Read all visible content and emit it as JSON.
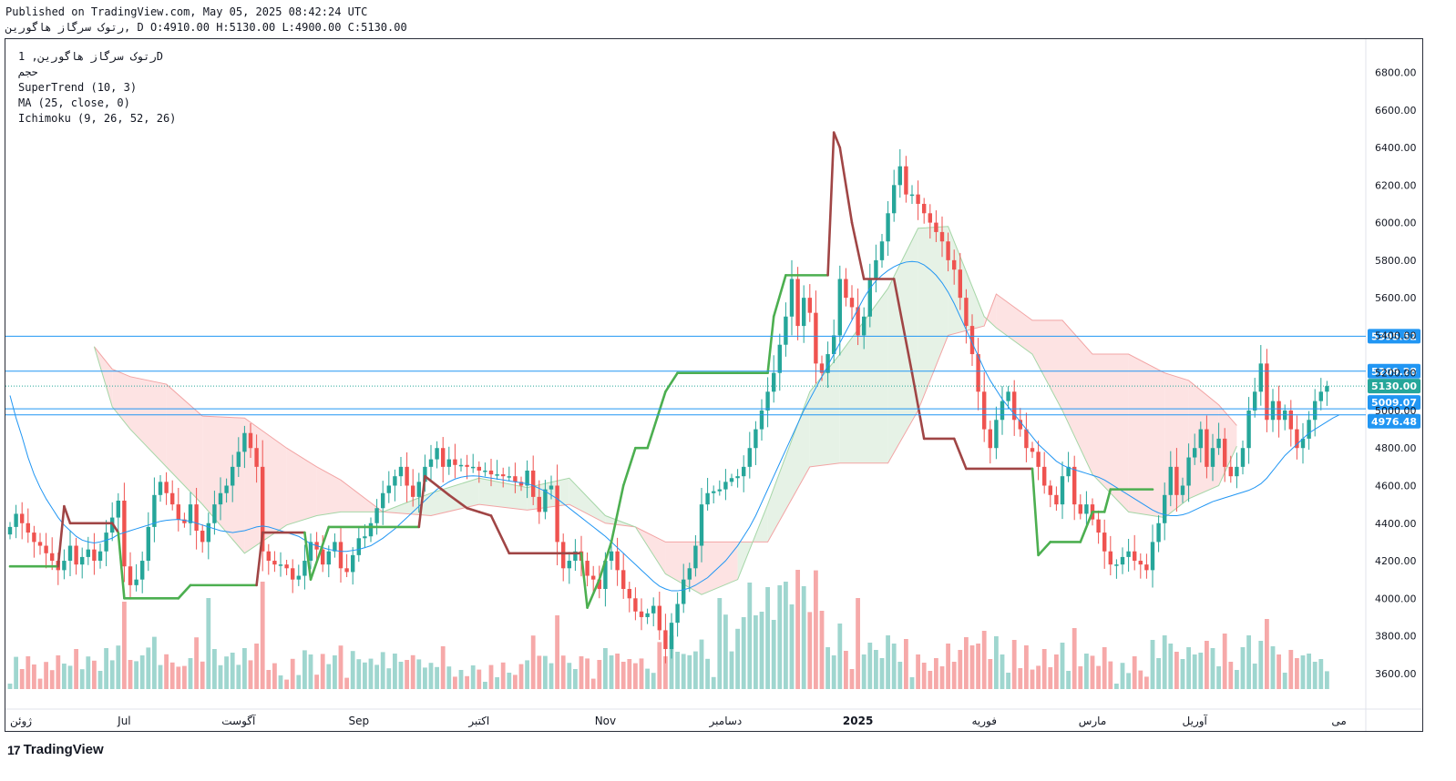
{
  "header": {
    "published": "Published on TradingView.com, May 05, 2025 08:42:24 UTC",
    "ohlc": "رتوک سرگاز هاگورین, D O:4910.00 H:5130.00 L:4900.00 C:5130.00"
  },
  "legend": {
    "symbol": "رتوک سرگاز هاگورین, 1D",
    "volume": "حجم",
    "supertrend": "SuperTrend (10, 3)",
    "ma": "MA (25, close, 0)",
    "ichimoku": "Ichimoku (9, 26, 52, 26)"
  },
  "footer": {
    "brand": "TradingView",
    "logo_glyph": "17"
  },
  "colors": {
    "up": "#26a69a",
    "down": "#ef5350",
    "vol_up": "#9fd6cf",
    "vol_down": "#f6a9a9",
    "ma": "#2196f3",
    "st_up": "#4caf50",
    "st_down": "#a04545",
    "cloud_bull": "#e6f2e6",
    "cloud_bear": "#fde3e3",
    "hline": "#2196f3"
  },
  "chart_data": {
    "type": "candlestick",
    "title": "رتوک سرگاز هاگورین, 1D",
    "ylim": [
      3420,
      6880
    ],
    "y_ticks": [
      3600,
      3800,
      4000,
      4200,
      4400,
      4600,
      4800,
      5000,
      5200,
      5400,
      5600,
      5800,
      6000,
      6200,
      6400,
      6600,
      6800
    ],
    "y_tick_labels": [
      "3600.00",
      "3800.00",
      "4000.00",
      "4200.00",
      "4400.00",
      "4600.00",
      "4800.00",
      "5000.00",
      "5200.00",
      "5400.00",
      "5600.00",
      "5800.00",
      "6000.00",
      "6200.00",
      "6400.00",
      "6600.00",
      "6800.00"
    ],
    "x_labels": [
      {
        "label": "ژوئن",
        "bar": 0
      },
      {
        "label": "Jul",
        "bar": 19
      },
      {
        "label": "آگوست",
        "bar": 38
      },
      {
        "label": "Sep",
        "bar": 58
      },
      {
        "label": "اکتبر",
        "bar": 78
      },
      {
        "label": "Nov",
        "bar": 99
      },
      {
        "label": "دسامبر",
        "bar": 119
      },
      {
        "label": "2025",
        "bar": 141
      },
      {
        "label": "فوریه",
        "bar": 162
      },
      {
        "label": "مارس",
        "bar": 180
      },
      {
        "label": "آوریل",
        "bar": 197
      },
      {
        "label": "می",
        "bar": 221
      }
    ],
    "price_lines": [
      {
        "value": 5395.52,
        "label": "5395.52"
      },
      {
        "value": 5209.28,
        "label": "5209.28"
      },
      {
        "value": 5009.07,
        "label": "5009.07"
      },
      {
        "value": 4976.48,
        "label": "4976.48"
      }
    ],
    "last_price": {
      "value": 5130.0,
      "label": "5130.00"
    },
    "bars_total": 225,
    "close": [
      4380,
      4450,
      4400,
      4350,
      4300,
      4280,
      4240,
      4200,
      4150,
      4200,
      4280,
      4180,
      4220,
      4260,
      4200,
      4250,
      4350,
      4430,
      4520,
      4170,
      4070,
      4100,
      4200,
      4380,
      4550,
      4620,
      4560,
      4500,
      4420,
      4400,
      4500,
      4360,
      4300,
      4400,
      4500,
      4560,
      4600,
      4700,
      4780,
      4880,
      4800,
      4700,
      4250,
      4200,
      4180,
      4180,
      4160,
      4100,
      4120,
      4200,
      4300,
      4260,
      4180,
      4250,
      4300,
      4160,
      4140,
      4230,
      4320,
      4330,
      4400,
      4480,
      4560,
      4600,
      4650,
      4700,
      4600,
      4540,
      4620,
      4700,
      4740,
      4800,
      4700,
      4740,
      4710,
      4710,
      4700,
      4700,
      4680,
      4680,
      4660,
      4660,
      4650,
      4650,
      4620,
      4600,
      4680,
      4540,
      4460,
      4580,
      4600,
      4300,
      4160,
      4200,
      4250,
      4200,
      4120,
      4100,
      4050,
      4200,
      4250,
      4150,
      4050,
      4000,
      3930,
      3900,
      3920,
      3960,
      3830,
      3730,
      3870,
      3970,
      4100,
      4160,
      4280,
      4500,
      4560,
      4570,
      4580,
      4620,
      4640,
      4650,
      4700,
      4800,
      4900,
      5000,
      5100,
      5200,
      5350,
      5500,
      5700,
      5450,
      5600,
      5520,
      5250,
      5200,
      5300,
      5400,
      5700,
      5600,
      5550,
      5400,
      5500,
      5700,
      5800,
      5900,
      6050,
      6200,
      6300,
      6150,
      6150,
      6100,
      6050,
      6000,
      5950,
      5900,
      5800,
      5750,
      5600,
      5450,
      5300,
      5100,
      4900,
      4800,
      4950,
      5050,
      5100,
      4950,
      4900,
      4800,
      4780,
      4700,
      4600,
      4550,
      4500,
      4650,
      4700,
      4500,
      4450,
      4500,
      4420,
      4350,
      4250,
      4180,
      4180,
      4220,
      4250,
      4200,
      4180,
      4150,
      4300,
      4400,
      4550,
      4700,
      4550,
      4600,
      4750,
      4800,
      4900,
      4700,
      4800,
      4850,
      4700,
      4650,
      4700,
      4800,
      5000,
      5100,
      5250,
      4950,
      5050,
      4950,
      5000,
      4900,
      4800,
      4850,
      4950,
      5050,
      5100,
      5130
    ],
    "ma_25": [
      5080,
      4960,
      4860,
      4750,
      4660,
      4590,
      4530,
      4480,
      4430,
      4390,
      4360,
      4330,
      4310,
      4300,
      4295,
      4300,
      4310,
      4320,
      4340,
      4350,
      4360,
      4370,
      4380,
      4390,
      4400,
      4410,
      4415,
      4418,
      4420,
      4415,
      4410,
      4400,
      4390,
      4380,
      4370,
      4360,
      4355,
      4350,
      4355,
      4360,
      4370,
      4380,
      4385,
      4380,
      4370,
      4360,
      4350,
      4340,
      4330,
      4310,
      4290,
      4280,
      4270,
      4260,
      4255,
      4250,
      4250,
      4255,
      4260,
      4270,
      4280,
      4300,
      4320,
      4345,
      4370,
      4400,
      4430,
      4460,
      4490,
      4520,
      4550,
      4580,
      4600,
      4620,
      4635,
      4645,
      4650,
      4652,
      4650,
      4645,
      4640,
      4635,
      4630,
      4625,
      4620,
      4615,
      4610,
      4600,
      4585,
      4570,
      4550,
      4530,
      4505,
      4480,
      4455,
      4430,
      4405,
      4380,
      4355,
      4330,
      4300,
      4270,
      4240,
      4210,
      4180,
      4150,
      4120,
      4090,
      4065,
      4050,
      4040,
      4040,
      4045,
      4055,
      4070,
      4090,
      4110,
      4140,
      4170,
      4200,
      4240,
      4280,
      4330,
      4380,
      4440,
      4510,
      4580,
      4650,
      4720,
      4790,
      4860,
      4930,
      5000,
      5060,
      5120,
      5180,
      5240,
      5300,
      5360,
      5420,
      5480,
      5540,
      5600,
      5650,
      5690,
      5720,
      5745,
      5765,
      5780,
      5790,
      5793,
      5790,
      5775,
      5750,
      5720,
      5680,
      5630,
      5570,
      5500,
      5430,
      5360,
      5290,
      5220,
      5160,
      5110,
      5060,
      5020,
      4980,
      4940,
      4900,
      4860,
      4820,
      4790,
      4760,
      4730,
      4710,
      4695,
      4685,
      4675,
      4665,
      4655,
      4645,
      4630,
      4610,
      4590,
      4570,
      4550,
      4530,
      4510,
      4490,
      4470,
      4455,
      4445,
      4440,
      4440,
      4445,
      4455,
      4470,
      4485,
      4500,
      4515,
      4525,
      4535,
      4545,
      4555,
      4565,
      4575,
      4590,
      4610,
      4640,
      4680,
      4720,
      4760,
      4790,
      4820,
      4850,
      4880,
      4900,
      4920,
      4940,
      4960,
      4976
    ],
    "supertrend": [
      {
        "bar": 0,
        "value": 4170,
        "trend": "up"
      },
      {
        "bar": 8,
        "value": 4170,
        "trend": "up"
      },
      {
        "bar": 9,
        "value": 4490,
        "trend": "down"
      },
      {
        "bar": 10,
        "value": 4400,
        "trend": "down"
      },
      {
        "bar": 17,
        "value": 4400,
        "trend": "down"
      },
      {
        "bar": 18,
        "value": 4350,
        "trend": "down"
      },
      {
        "bar": 19,
        "value": 4000,
        "trend": "up"
      },
      {
        "bar": 20,
        "value": 4000,
        "trend": "up"
      },
      {
        "bar": 28,
        "value": 4000,
        "trend": "up"
      },
      {
        "bar": 30,
        "value": 4070,
        "trend": "up"
      },
      {
        "bar": 41,
        "value": 4070,
        "trend": "up"
      },
      {
        "bar": 42,
        "value": 4350,
        "trend": "down"
      },
      {
        "bar": 49,
        "value": 4350,
        "trend": "down"
      },
      {
        "bar": 50,
        "value": 4100,
        "trend": "up"
      },
      {
        "bar": 53,
        "value": 4380,
        "trend": "up"
      },
      {
        "bar": 68,
        "value": 4380,
        "trend": "up"
      },
      {
        "bar": 69,
        "value": 4650,
        "trend": "down"
      },
      {
        "bar": 73,
        "value": 4550,
        "trend": "down"
      },
      {
        "bar": 76,
        "value": 4480,
        "trend": "down"
      },
      {
        "bar": 78,
        "value": 4460,
        "trend": "down"
      },
      {
        "bar": 80,
        "value": 4440,
        "trend": "down"
      },
      {
        "bar": 83,
        "value": 4240,
        "trend": "down"
      },
      {
        "bar": 95,
        "value": 4240,
        "trend": "down"
      },
      {
        "bar": 96,
        "value": 3950,
        "trend": "up"
      },
      {
        "bar": 98,
        "value": 4100,
        "trend": "up"
      },
      {
        "bar": 100,
        "value": 4300,
        "trend": "up"
      },
      {
        "bar": 102,
        "value": 4600,
        "trend": "up"
      },
      {
        "bar": 104,
        "value": 4800,
        "trend": "up"
      },
      {
        "bar": 106,
        "value": 4800,
        "trend": "up"
      },
      {
        "bar": 109,
        "value": 5100,
        "trend": "up"
      },
      {
        "bar": 111,
        "value": 5200,
        "trend": "up"
      },
      {
        "bar": 121,
        "value": 5200,
        "trend": "up"
      },
      {
        "bar": 126,
        "value": 5200,
        "trend": "up"
      },
      {
        "bar": 127,
        "value": 5500,
        "trend": "up"
      },
      {
        "bar": 129,
        "value": 5720,
        "trend": "up"
      },
      {
        "bar": 136,
        "value": 5720,
        "trend": "up"
      },
      {
        "bar": 137,
        "value": 6480,
        "trend": "down"
      },
      {
        "bar": 138,
        "value": 6400,
        "trend": "down"
      },
      {
        "bar": 140,
        "value": 6000,
        "trend": "down"
      },
      {
        "bar": 142,
        "value": 5700,
        "trend": "down"
      },
      {
        "bar": 147,
        "value": 5700,
        "trend": "down"
      },
      {
        "bar": 150,
        "value": 5200,
        "trend": "down"
      },
      {
        "bar": 152,
        "value": 4850,
        "trend": "down"
      },
      {
        "bar": 157,
        "value": 4850,
        "trend": "down"
      },
      {
        "bar": 159,
        "value": 4690,
        "trend": "down"
      },
      {
        "bar": 170,
        "value": 4690,
        "trend": "down"
      },
      {
        "bar": 171,
        "value": 4230,
        "trend": "up"
      },
      {
        "bar": 173,
        "value": 4300,
        "trend": "up"
      },
      {
        "bar": 178,
        "value": 4300,
        "trend": "up"
      },
      {
        "bar": 180,
        "value": 4460,
        "trend": "up"
      },
      {
        "bar": 182,
        "value": 4460,
        "trend": "up"
      },
      {
        "bar": 183,
        "value": 4580,
        "trend": "up"
      },
      {
        "bar": 190,
        "value": 4580,
        "trend": "up"
      }
    ],
    "cloud": [
      {
        "bar": 14,
        "top": 5340,
        "bottom": 5340
      },
      {
        "bar": 17,
        "top": 5220,
        "bottom": 5020
      },
      {
        "bar": 20,
        "top": 5180,
        "bottom": 4900
      },
      {
        "bar": 26,
        "top": 5140,
        "bottom": 4700
      },
      {
        "bar": 32,
        "top": 4970,
        "bottom": 4500
      },
      {
        "bar": 39,
        "top": 4960,
        "bottom": 4240
      },
      {
        "bar": 46,
        "top": 4800,
        "bottom": 4390
      },
      {
        "bar": 51,
        "top": 4700,
        "bottom": 4440
      },
      {
        "bar": 55,
        "top": 4630,
        "bottom": 4460
      },
      {
        "bar": 62,
        "top": 4460,
        "bottom": 4460
      },
      {
        "bar": 70,
        "top": 4440,
        "bottom": 4560
      },
      {
        "bar": 78,
        "top": 4500,
        "bottom": 4640
      },
      {
        "bar": 86,
        "top": 4470,
        "bottom": 4590
      },
      {
        "bar": 93,
        "top": 4500,
        "bottom": 4640
      },
      {
        "bar": 99,
        "top": 4400,
        "bottom": 4440
      },
      {
        "bar": 104,
        "top": 4380,
        "bottom": 4380
      },
      {
        "bar": 109,
        "top": 4300,
        "bottom": 4130
      },
      {
        "bar": 115,
        "top": 4300,
        "bottom": 4020
      },
      {
        "bar": 121,
        "top": 4300,
        "bottom": 4100
      },
      {
        "bar": 126,
        "top": 4300,
        "bottom": 4500
      },
      {
        "bar": 133,
        "top": 4700,
        "bottom": 5100
      },
      {
        "bar": 138,
        "top": 4720,
        "bottom": 5300
      },
      {
        "bar": 146,
        "top": 4720,
        "bottom": 5650
      },
      {
        "bar": 151,
        "top": 5000,
        "bottom": 5970
      },
      {
        "bar": 156,
        "top": 5400,
        "bottom": 5980
      },
      {
        "bar": 162,
        "top": 5450,
        "bottom": 5500
      },
      {
        "bar": 164,
        "top": 5620,
        "bottom": 5440
      },
      {
        "bar": 170,
        "top": 5480,
        "bottom": 5300
      },
      {
        "bar": 175,
        "top": 5480,
        "bottom": 5000
      },
      {
        "bar": 180,
        "top": 5300,
        "bottom": 4660
      },
      {
        "bar": 186,
        "top": 5300,
        "bottom": 4460
      },
      {
        "bar": 192,
        "top": 5200,
        "bottom": 4430
      },
      {
        "bar": 196,
        "top": 5160,
        "bottom": 4530
      },
      {
        "bar": 201,
        "top": 5030,
        "bottom": 4600
      },
      {
        "bar": 204,
        "top": 4920,
        "bottom": 4810
      }
    ],
    "volume_note": "relative volume bars in the lower pane, colored by candle direction"
  }
}
